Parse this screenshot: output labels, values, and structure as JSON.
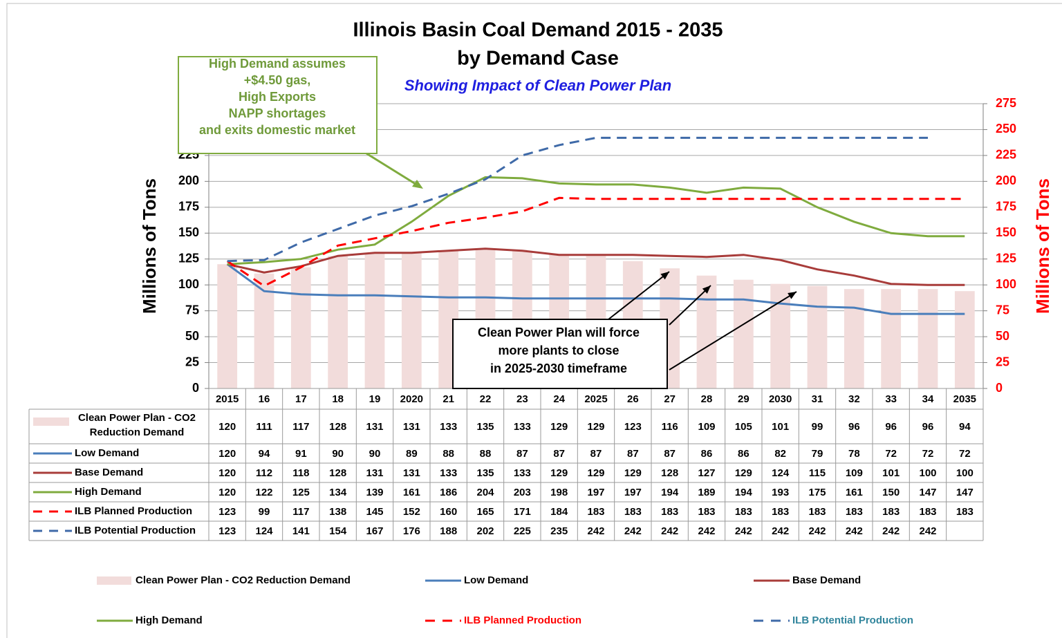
{
  "chart_data": {
    "type": "combo",
    "title": [
      "Illinois Basin Coal Demand 2015 - 2035",
      "by Demand Case"
    ],
    "subtitle": "Showing Impact of Clean Power Plan",
    "y_label": "Millions of Tons",
    "y2_label": "Millions of Tons",
    "categories": [
      "2015",
      "16",
      "17",
      "18",
      "19",
      "2020",
      "21",
      "22",
      "23",
      "24",
      "2025",
      "26",
      "27",
      "28",
      "29",
      "2030",
      "31",
      "32",
      "33",
      "34",
      "2035"
    ],
    "ylim": [
      0,
      275
    ],
    "yticks": [
      0,
      25,
      50,
      75,
      100,
      125,
      150,
      175,
      200,
      225,
      250,
      275
    ],
    "y2lim": [
      0,
      275
    ],
    "y2ticks": [
      0,
      25,
      50,
      75,
      100,
      125,
      150,
      175,
      200,
      225,
      250,
      275
    ],
    "grid": true,
    "series": [
      {
        "name": "Clean Power Plan - CO2 Reduction Demand",
        "type": "bar",
        "color": "#f2dcdb",
        "values": [
          120,
          111,
          117,
          128,
          131,
          131,
          133,
          135,
          133,
          129,
          129,
          123,
          116,
          109,
          105,
          101,
          99,
          96,
          96,
          96,
          94
        ]
      },
      {
        "name": "Low Demand",
        "type": "line",
        "color": "#4a7ebb",
        "dashed": false,
        "values": [
          120,
          94,
          91,
          90,
          90,
          89,
          88,
          88,
          87,
          87,
          87,
          87,
          87,
          86,
          86,
          82,
          79,
          78,
          72,
          72,
          72
        ]
      },
      {
        "name": "Base Demand",
        "type": "line",
        "color": "#a83c3a",
        "dashed": false,
        "values": [
          120,
          112,
          118,
          128,
          131,
          131,
          133,
          135,
          133,
          129,
          129,
          129,
          128,
          127,
          129,
          124,
          115,
          109,
          101,
          100,
          100
        ]
      },
      {
        "name": "High Demand",
        "type": "line",
        "color": "#7fab3e",
        "dashed": false,
        "values": [
          120,
          122,
          125,
          134,
          139,
          161,
          186,
          204,
          203,
          198,
          197,
          197,
          194,
          189,
          194,
          193,
          175,
          161,
          150,
          147,
          147
        ]
      },
      {
        "name": "ILB Planned Production",
        "type": "line",
        "color": "#ff0000",
        "dashed": true,
        "label_color": "#ff0000",
        "values": [
          123,
          99,
          117,
          138,
          145,
          152,
          160,
          165,
          171,
          184,
          183,
          183,
          183,
          183,
          183,
          183,
          183,
          183,
          183,
          183,
          183
        ]
      },
      {
        "name": "ILB Potential Production",
        "type": "line",
        "color": "#3f6aa8",
        "dashed": true,
        "label_color": "#31859c",
        "values": [
          123,
          124,
          141,
          154,
          167,
          176,
          188,
          202,
          225,
          235,
          242,
          242,
          242,
          242,
          242,
          242,
          242,
          242,
          242,
          242,
          null
        ]
      }
    ],
    "annotations": [
      {
        "lines": [
          "High Demand assumes",
          "+$4.50 gas,",
          "High Exports",
          "NAPP shortages",
          "and exits domestic market"
        ]
      },
      {
        "lines": [
          "Clean Power Plan will force",
          "more plants to close",
          "in 2025-2030 timeframe"
        ]
      }
    ]
  }
}
